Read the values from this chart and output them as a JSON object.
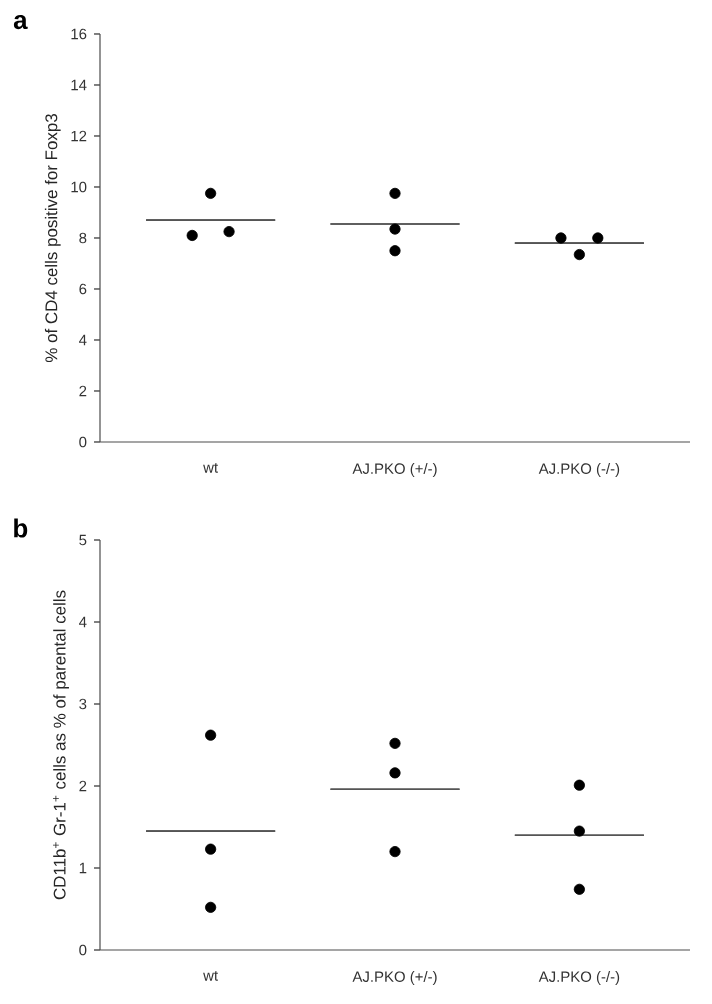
{
  "chart_data": [
    {
      "type": "scatter",
      "title": "a",
      "ylabel": "% of CD4 cells positive for Foxp3",
      "categories": [
        "wt",
        "AJ.PKO (+/-)",
        "AJ.PKO (-/-)"
      ],
      "ylim": [
        0,
        16
      ],
      "yticks": [
        0,
        2,
        4,
        6,
        8,
        10,
        12,
        14,
        16
      ],
      "marker": "circle",
      "series": [
        {
          "color": "#000000",
          "x": [
            "wt",
            "wt",
            "wt",
            "AJ.PKO (+/-)",
            "AJ.PKO (+/-)",
            "AJ.PKO (+/-)",
            "AJ.PKO (-/-)",
            "AJ.PKO (-/-)",
            "AJ.PKO (-/-)"
          ],
          "values": [
            9.75,
            8.1,
            8.25,
            9.75,
            8.35,
            7.5,
            8.0,
            7.35,
            8.0
          ]
        },
        {
          "type": "box",
          "color": "#555555",
          "boxes": [
            {
              "low": 8.7,
              "q1": 8.7,
              "median": 8.7,
              "q3": 8.7,
              "high": 8.7
            },
            {
              "low": 8.55,
              "q1": 8.55,
              "median": 8.55,
              "q3": 8.55,
              "high": 8.55
            },
            {
              "low": 7.8,
              "q1": 7.8,
              "median": 7.8,
              "q3": 7.8,
              "high": 7.8
            }
          ]
        }
      ]
    },
    {
      "type": "scatter",
      "title": "b",
      "ylabel": "CD11b$^{+}$ Gr-1$^{+}$ cells as % of parental cells",
      "categories": [
        "wt",
        "AJ.PKO (+/-)",
        "AJ.PKO (-/-)"
      ],
      "ylim": [
        0,
        5
      ],
      "yticks": [
        0,
        1,
        2,
        3,
        4,
        5
      ],
      "marker": "circle",
      "series": [
        {
          "color": "#000000",
          "x": [
            "wt",
            "wt",
            "wt",
            "AJ.PKO (+/-)",
            "AJ.PKO (+/-)",
            "AJ.PKO (+/-)",
            "AJ.PKO (-/-)",
            "AJ.PKO (-/-)",
            "AJ.PKO (-/-)"
          ],
          "values": [
            2.62,
            1.23,
            0.52,
            2.52,
            2.16,
            1.2,
            2.01,
            1.45,
            0.74
          ]
        },
        {
          "type": "box",
          "color": "#555555",
          "boxes": [
            {
              "low": 1.45,
              "q1": 1.45,
              "median": 1.45,
              "q3": 1.45,
              "high": 1.45
            },
            {
              "low": 1.96,
              "q1": 1.96,
              "median": 1.96,
              "q3": 1.96,
              "high": 1.96
            },
            {
              "low": 1.4,
              "q1": 1.4,
              "median": 1.4,
              "q3": 1.4,
              "high": 1.4
            }
          ]
        }
      ]
    }
  ]
}
